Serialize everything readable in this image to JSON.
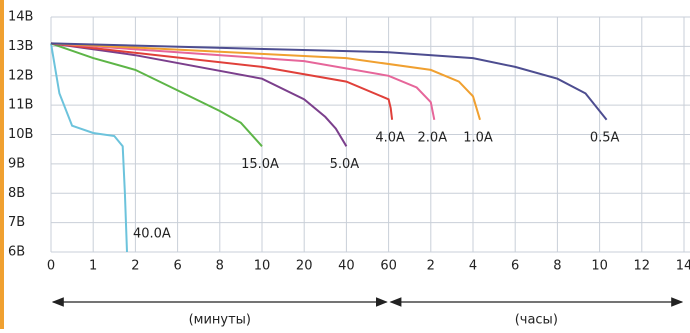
{
  "chart_data": {
    "type": "line",
    "ylim": [
      6,
      14
    ],
    "yticks": [
      {
        "value": 6,
        "label": "6В"
      },
      {
        "value": 7,
        "label": "7В"
      },
      {
        "value": 8,
        "label": "8В"
      },
      {
        "value": 9,
        "label": "9В"
      },
      {
        "value": 10,
        "label": "10В"
      },
      {
        "value": 11,
        "label": "11В"
      },
      {
        "value": 12,
        "label": "12В"
      },
      {
        "value": 13,
        "label": "13В"
      },
      {
        "value": 14,
        "label": "14В"
      }
    ],
    "xticks": [
      0,
      1,
      2,
      6,
      8,
      10,
      20,
      40,
      60,
      {
        "value": 120,
        "label": "2"
      },
      {
        "value": 240,
        "label": "4"
      },
      {
        "value": 360,
        "label": "6"
      },
      {
        "value": 480,
        "label": "8"
      },
      {
        "value": 600,
        "label": "10"
      },
      {
        "value": 720,
        "label": "12"
      },
      {
        "value": 840,
        "label": "14"
      }
    ],
    "xlim": [
      0,
      840
    ],
    "grid": true,
    "x_groups": [
      {
        "label": "(минуты)",
        "range": [
          0,
          60
        ]
      },
      {
        "label": "(часы)",
        "range": [
          60,
          840
        ]
      }
    ],
    "series": [
      {
        "name": "40.0A",
        "color": "#6cc3dc",
        "x": [
          0,
          0.2,
          0.5,
          1,
          1.5,
          1.7,
          1.75,
          1.8
        ],
        "values": [
          13.1,
          11.4,
          10.3,
          10.05,
          9.95,
          9.6,
          8.0,
          6.0
        ]
      },
      {
        "name": "15.0A",
        "color": "#5db547",
        "x": [
          0,
          1,
          2,
          6,
          8,
          9,
          10
        ],
        "values": [
          13.1,
          12.6,
          12.2,
          11.5,
          10.8,
          10.4,
          9.6
        ]
      },
      {
        "name": "5.0A",
        "color": "#7b3f8c",
        "x": [
          0,
          2,
          10,
          20,
          30,
          35,
          40
        ],
        "values": [
          13.1,
          12.7,
          11.9,
          11.2,
          10.6,
          10.2,
          9.6
        ]
      },
      {
        "name": "4.0A",
        "color": "#e0403a",
        "x": [
          0,
          10,
          40,
          60,
          63,
          65
        ],
        "values": [
          13.1,
          12.3,
          11.8,
          11.2,
          10.9,
          10.5
        ]
      },
      {
        "name": "2.0A",
        "color": "#e6669a",
        "x": [
          0,
          20,
          60,
          100,
          120,
          130
        ],
        "values": [
          13.1,
          12.5,
          12.0,
          11.6,
          11.1,
          10.5
        ]
      },
      {
        "name": "1.0A",
        "color": "#f0a030",
        "x": [
          0,
          40,
          120,
          200,
          240,
          260
        ],
        "values": [
          13.1,
          12.6,
          12.2,
          11.8,
          11.3,
          10.5
        ]
      },
      {
        "name": "0.5A",
        "color": "#4d4d90",
        "x": [
          0,
          60,
          240,
          360,
          480,
          560,
          620
        ],
        "values": [
          13.1,
          12.8,
          12.6,
          12.3,
          11.9,
          11.4,
          10.5
        ]
      }
    ]
  }
}
